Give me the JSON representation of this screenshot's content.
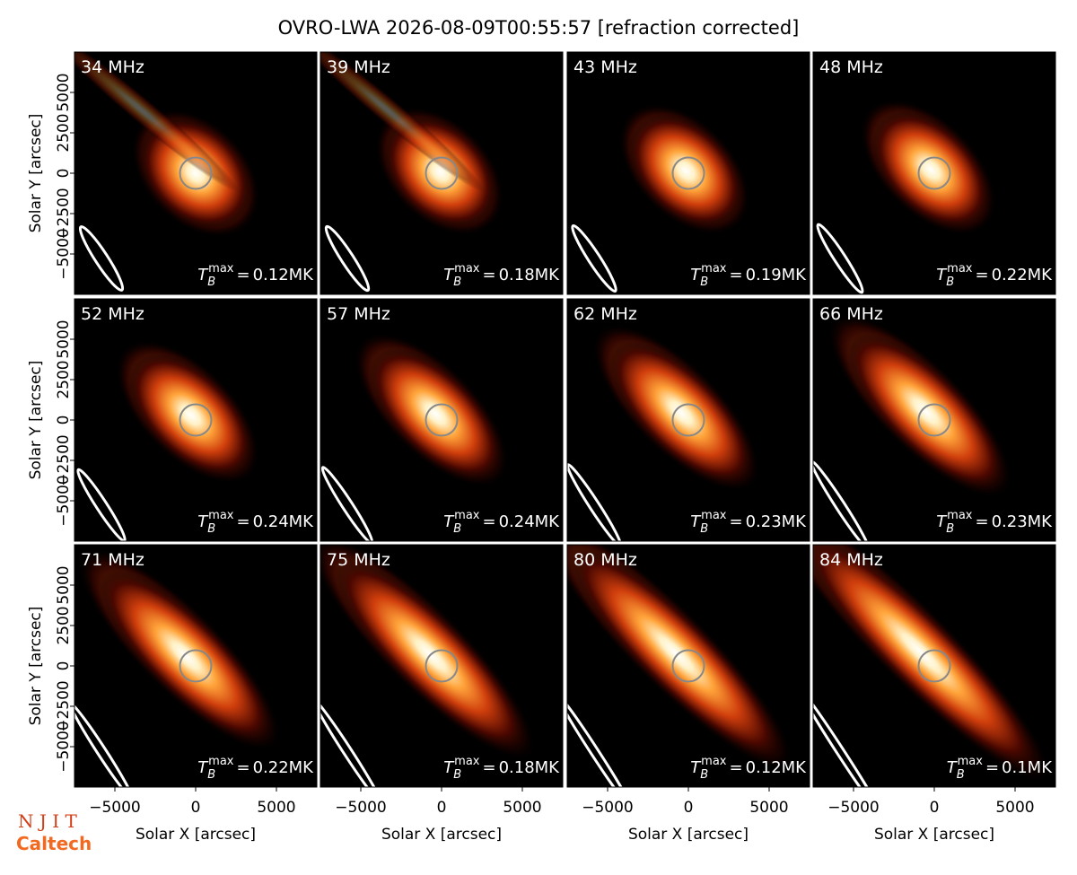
{
  "chart_data": {
    "type": "image-grid",
    "title": "OVRO-LWA 2026-08-09T00:55:57 [refraction corrected]",
    "x_label": "Solar X [arcsec]",
    "y_label": "Solar Y [arcsec]",
    "xlim": [
      -7500,
      7500
    ],
    "ylim": [
      -7500,
      7500
    ],
    "xticks": [
      {
        "value": -5000,
        "label": "−5000"
      },
      0,
      5000
    ],
    "yticks": [
      {
        "value": -5000,
        "label": "−5000"
      },
      {
        "value": -2500,
        "label": "−2500"
      },
      0,
      2500,
      5000
    ],
    "tb_symbol": {
      "base": "T",
      "sub": "B",
      "sup": "max",
      "sign": "="
    },
    "panels": [
      {
        "label": "34 MHz",
        "tb_max": "0.12MK"
      },
      {
        "label": "39 MHz",
        "tb_max": "0.18MK"
      },
      {
        "label": "43 MHz",
        "tb_max": "0.19MK"
      },
      {
        "label": "48 MHz",
        "tb_max": "0.22MK"
      },
      {
        "label": "52 MHz",
        "tb_max": "0.24MK"
      },
      {
        "label": "57 MHz",
        "tb_max": "0.24MK"
      },
      {
        "label": "62 MHz",
        "tb_max": "0.23MK"
      },
      {
        "label": "66 MHz",
        "tb_max": "0.23MK"
      },
      {
        "label": "71 MHz",
        "tb_max": "0.22MK"
      },
      {
        "label": "75 MHz",
        "tb_max": "0.18MK"
      },
      {
        "label": "80 MHz",
        "tb_max": "0.12MK"
      },
      {
        "label": "84 MHz",
        "tb_max": "0.1MK"
      }
    ],
    "logos": {
      "top": "N J I T",
      "bottom": "Caltech"
    }
  }
}
